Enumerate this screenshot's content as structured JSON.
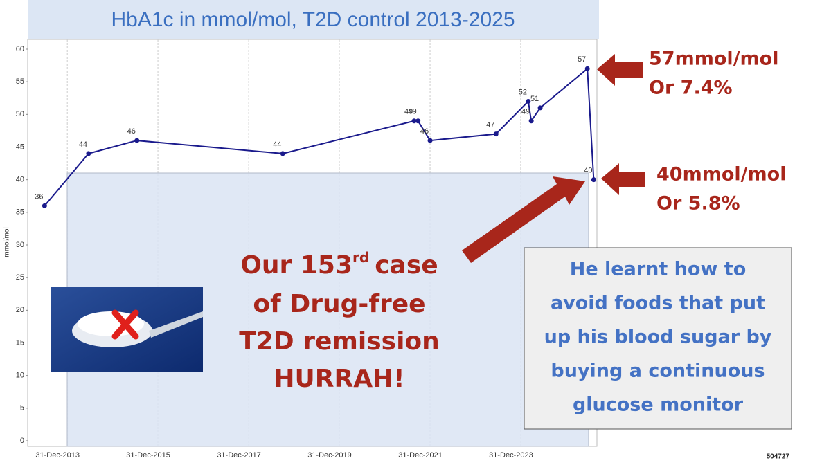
{
  "chart_data": {
    "type": "line",
    "title": "HbA1c in mmol/mol, T2D control 2013-2025",
    "y_label": "mmol/mol",
    "x": [
      "2013-07-01",
      "2014-06-20",
      "2015-07-15",
      "2018-10-01",
      "2021-08-25",
      "2021-09-25",
      "2021-12-31",
      "2023-06-15",
      "2024-03-01",
      "2024-03-25",
      "2024-06-05",
      "2025-06-20",
      "2025-08-10"
    ],
    "values": [
      36,
      44,
      46,
      44,
      49,
      49,
      46,
      47,
      52,
      49,
      51,
      57,
      40
    ],
    "color": "#1a1a8c",
    "xlim": [
      "2013-02-15",
      "2025-09-05"
    ],
    "xticks": [
      {
        "value": "2013-12-31",
        "label": "31-Dec-2013"
      },
      {
        "value": "2015-12-31",
        "label": "31-Dec-2015"
      },
      {
        "value": "2017-12-31",
        "label": "31-Dec-2017"
      },
      {
        "value": "2019-12-31",
        "label": "31-Dec-2019"
      },
      {
        "value": "2021-12-31",
        "label": "31-Dec-2021"
      },
      {
        "value": "2023-12-31",
        "label": "31-Dec-2023"
      }
    ],
    "ylim": [
      0,
      60
    ],
    "yticks": [
      0,
      5,
      10,
      15,
      20,
      25,
      30,
      35,
      40,
      45,
      50,
      55,
      60
    ],
    "grid": true,
    "annotations": {
      "top_value": "57mmol/mol",
      "top_percent": "Or 7.4%",
      "bottom_value": "40mmol/mol",
      "bottom_percent": "Or 5.8%",
      "headline_start": "Our 153",
      "headline_sup": "rd",
      "headline_end": "case",
      "headline_lines": [
        "of Drug-free",
        "T2D remission",
        "HURRAH!"
      ],
      "note_lines": [
        "He learnt how to",
        "avoid foods that put",
        "up his blood sugar by",
        "buying a continuous",
        "glucose monitor"
      ],
      "id": "504727"
    }
  }
}
